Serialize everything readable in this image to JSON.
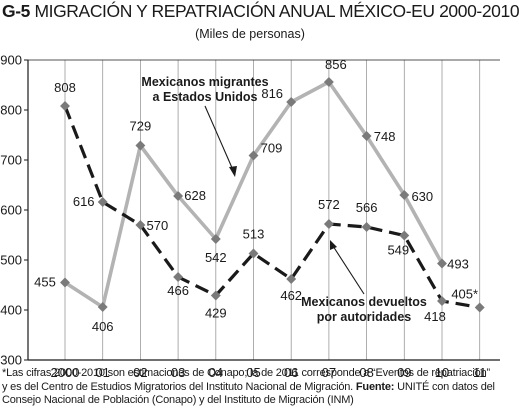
{
  "header": {
    "code": "G-5",
    "title": "MIGRACIÓN Y REPATRIACIÓN ANUAL MÉXICO-EU 2000-2010",
    "subtitle": "(Miles de personas)"
  },
  "chart_data": {
    "type": "line",
    "categories": [
      "2000",
      "01",
      "02",
      "03",
      "04",
      "05",
      "06",
      "07",
      "08",
      "09",
      "10",
      "11"
    ],
    "ylim": [
      300,
      900
    ],
    "yticks": [
      300,
      400,
      500,
      600,
      700,
      800,
      900
    ],
    "grid": {
      "vertical": true,
      "horizontal": false
    },
    "series": [
      {
        "name": "Mexicanos migrantes a Estados Unidos",
        "name_lines": [
          "Mexicanos migrantes",
          "a Estados Unidos"
        ],
        "style": "solid",
        "color": "#b3b3b3",
        "marker_color": "#7a7a7a",
        "values": [
          455,
          406,
          729,
          628,
          542,
          709,
          816,
          856,
          748,
          630,
          493,
          null
        ],
        "labels": [
          "455",
          "406",
          "729",
          "628",
          "542",
          "709",
          "816",
          "856",
          "748",
          "630",
          "493",
          null
        ]
      },
      {
        "name": "Mexicanos devueltos por autoridades",
        "name_lines": [
          "Mexicanos devueltos",
          "por autoridades"
        ],
        "style": "dashed",
        "color": "#1a1a1a",
        "marker_color": "#7a7a7a",
        "values": [
          808,
          616,
          570,
          466,
          429,
          513,
          462,
          572,
          566,
          549,
          418,
          405
        ],
        "labels": [
          "808",
          "616",
          "570",
          "466",
          "429",
          "513",
          "462",
          "572",
          "566",
          "549",
          "418",
          "405*"
        ]
      }
    ]
  },
  "footnote": {
    "text": "*Las cifras 2000-2010 son estimaciones de Conapo; la de 2011 corresponde a “Eventos de repatriación” y es del Centro de Estudios Migratorios del Instituto Nacional de Migración.",
    "source_label": "Fuente:",
    "source_text": "UNITÉ con datos del Consejo Nacional de Población (Conapo) y del Instituto de Migración (INM)"
  }
}
